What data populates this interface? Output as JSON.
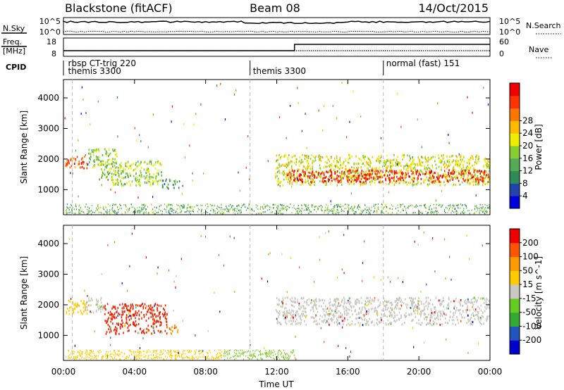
{
  "header": {
    "station": "Blackstone (fitACF)",
    "beam": "Beam 08",
    "date": "14/Oct/2015"
  },
  "top_panels": {
    "nsky_label": "N.Sky",
    "nsearch_label": "N.Search",
    "nsky_ticks": [
      "10^5",
      "10^0"
    ],
    "nsearch_ticks": [
      "10^5",
      "10^0"
    ],
    "freq_label_1": "Freq.",
    "freq_label_2": "[MHz]",
    "freq_ticks": [
      "18",
      "8"
    ],
    "nave_label": "Nave",
    "nave_ticks": [
      "60",
      "0"
    ],
    "cpid_label": "CPID",
    "cpid_entries": [
      {
        "text": "rbsp CT-trig 220",
        "start_hour": 0.1,
        "row": 0
      },
      {
        "text": "themis 3300",
        "start_hour": 0.1,
        "row": 1
      },
      {
        "text": "themis 3300",
        "start_hour": 10.5,
        "row": 1
      },
      {
        "text": "normal (fast) 151",
        "start_hour": 18.0,
        "row": 0
      }
    ],
    "cpid_dividers": [
      10.5,
      18.0
    ],
    "nave_step_hour": 13.0
  },
  "chart_data": [
    {
      "type": "heatmap",
      "panel": "power",
      "ylabel": "Slant Range [km]",
      "ylim": [
        180,
        4600
      ],
      "yticks": [
        1000,
        2000,
        3000,
        4000
      ],
      "colorbar_label": "Power [dB]",
      "colorbar_ticks": [
        "4",
        "8",
        "12",
        "16",
        "20",
        "24",
        "28"
      ],
      "colorscale": [
        "#0000dd",
        "#2244aa",
        "#2e8b57",
        "#55aa55",
        "#88cc33",
        "#eeee00",
        "#ffbb00",
        "#ff7700",
        "#ff3300",
        "#ee0000"
      ],
      "regions": [
        {
          "x0": 0.1,
          "x1": 1.3,
          "y0": 1650,
          "y1": 2050,
          "level": 0.85
        },
        {
          "x0": 1.3,
          "x1": 3.0,
          "y0": 1700,
          "y1": 2300,
          "level": 0.45
        },
        {
          "x0": 2.0,
          "x1": 5.5,
          "y0": 1100,
          "y1": 1900,
          "level": 0.45
        },
        {
          "x0": 5.5,
          "x1": 6.5,
          "y0": 1000,
          "y1": 1300,
          "level": 0.3
        },
        {
          "x0": 11.9,
          "x1": 24.0,
          "y0": 1100,
          "y1": 2100,
          "level": 0.55
        },
        {
          "x0": 12.5,
          "x1": 24.0,
          "y0": 1200,
          "y1": 1600,
          "level": 0.95
        }
      ],
      "ground_band": {
        "x0": 0.1,
        "x1": 24.0,
        "y0": 180,
        "y1": 500
      }
    },
    {
      "type": "heatmap",
      "panel": "velocity",
      "xlabel": "Time UT",
      "xlim": [
        0,
        24
      ],
      "xticks": [
        "00:00",
        "04:00",
        "08:00",
        "12:00",
        "16:00",
        "20:00",
        "00:00"
      ],
      "ylabel": "Slant Range [km]",
      "ylim": [
        180,
        4600
      ],
      "yticks": [
        1000,
        2000,
        3000,
        4000
      ],
      "colorbar_label": "Velocity [m s^-1]",
      "colorbar_ticks": [
        "200",
        "100",
        "50",
        "15",
        "-15",
        "-50",
        "-100",
        "-200"
      ],
      "colorscale": [
        "#0000cc",
        "#2255bb",
        "#33aa33",
        "#66cc22",
        "#c8c8c0",
        "#ffcc00",
        "#ff9900",
        "#ff5500",
        "#ee0000"
      ],
      "regions": [
        {
          "x0": 0.1,
          "x1": 1.3,
          "y0": 1650,
          "y1": 2100,
          "color": "#ffcc00"
        },
        {
          "x0": 1.2,
          "x1": 2.2,
          "y0": 1700,
          "y1": 2200,
          "color": "#c8c8c0"
        },
        {
          "x0": 2.3,
          "x1": 5.8,
          "y0": 1000,
          "y1": 2000,
          "color": "#ee2200"
        },
        {
          "x0": 5.8,
          "x1": 6.5,
          "y0": 1000,
          "y1": 1300,
          "color": "#ff9900"
        },
        {
          "x0": 11.9,
          "x1": 24.0,
          "y0": 1300,
          "y1": 2200,
          "color": "#c8c8c0"
        }
      ],
      "ground_band": [
        {
          "x0": 0.1,
          "x1": 9.0,
          "y0": 180,
          "y1": 500,
          "color": "#ffcc00"
        },
        {
          "x0": 9.0,
          "x1": 13.0,
          "y0": 180,
          "y1": 500,
          "color": "#88cc33"
        }
      ]
    }
  ]
}
